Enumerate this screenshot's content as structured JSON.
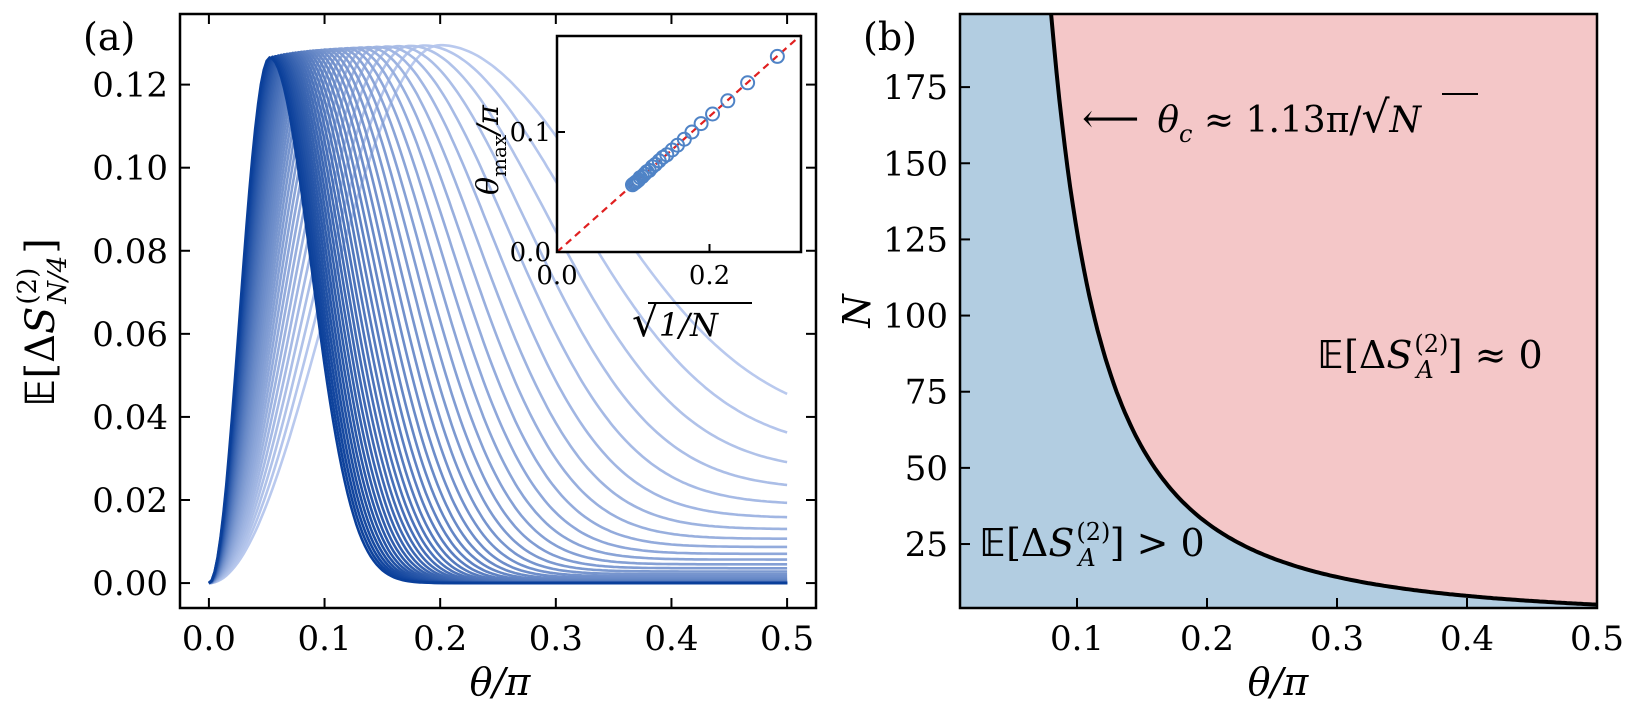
{
  "panels": {
    "a": {
      "label": "(a)",
      "xlabel": "θ/π",
      "ylabel": {
        "E": "𝔼",
        "lb": "[",
        "Delta": "Δ",
        "S": "S",
        "sup": "(2)",
        "sub": "N/4",
        "rb": "]"
      },
      "x_ticks": [
        "0.0",
        "0.1",
        "0.2",
        "0.3",
        "0.4",
        "0.5"
      ],
      "y_ticks": [
        "0.00",
        "0.02",
        "0.04",
        "0.06",
        "0.08",
        "0.10",
        "0.12"
      ],
      "inset": {
        "ylabel": {
          "theta": "θ",
          "sub": "max",
          "rest": "/π"
        },
        "xlabel": {
          "sqrt": "√",
          "body": "1/N"
        },
        "x_ticks": [
          "0.0",
          "0.2"
        ],
        "y_ticks": [
          "0.0",
          "0.1"
        ]
      }
    },
    "b": {
      "label": "(b)",
      "xlabel": "θ/π",
      "ylabel": "N",
      "x_ticks": [
        "0.1",
        "0.2",
        "0.3",
        "0.4",
        "0.5"
      ],
      "y_ticks": [
        "25",
        "50",
        "75",
        "100",
        "125",
        "150",
        "175"
      ],
      "arrow_annotation": {
        "arrow": "⟵",
        "theta": "θ",
        "sub": "c",
        "rest": " ≈ 1.13π/",
        "sqrt": "√",
        "N": "N"
      },
      "region_upper": {
        "E": "𝔼",
        "lb": "[",
        "Delta": "Δ",
        "S": "S",
        "sup": "(2)",
        "sub": "A",
        "rb": "]",
        "rel": " ≈ 0"
      },
      "region_lower": {
        "E": "𝔼",
        "lb": "[",
        "Delta": "Δ",
        "S": "S",
        "sup": "(2)",
        "sub": "A",
        "rb": "]",
        "rel": " > 0"
      }
    }
  },
  "colors": {
    "curve_light": "#b9c9ee",
    "curve_dark": "#0a3f9a",
    "inset_marker": "#4f83c6",
    "inset_fit": "#e02020",
    "region_low": "#b2cde1",
    "region_high": "#f4c7c8",
    "boundary": "#000000"
  },
  "chart_data": [
    {
      "type": "line",
      "panel": "a",
      "description_note": "",
      "x": [
        0.0,
        0.025,
        0.05,
        0.075,
        0.1,
        0.125,
        0.15,
        0.175,
        0.2,
        0.225,
        0.25,
        0.275,
        0.3,
        0.325,
        0.35,
        0.375,
        0.4,
        0.425,
        0.45,
        0.475,
        0.5
      ],
      "series": [
        {
          "values": [
            0.0,
            0.006,
            0.023,
            0.046,
            0.071,
            0.094,
            0.112,
            0.124,
            0.1295,
            0.127,
            0.119,
            0.107,
            0.093,
            0.079,
            0.067,
            0.057,
            0.049,
            0.043,
            0.04,
            0.038,
            0.0375
          ]
        },
        {
          "values": [
            0.0,
            0.009,
            0.034,
            0.066,
            0.097,
            0.118,
            0.1275,
            0.124,
            0.111,
            0.093,
            0.073,
            0.054,
            0.039,
            0.027,
            0.019,
            0.0145,
            0.012,
            0.011,
            0.0105,
            0.0105,
            0.0105
          ]
        },
        {
          "values": [
            0.0,
            0.012,
            0.045,
            0.085,
            0.115,
            0.1275,
            0.121,
            0.101,
            0.076,
            0.052,
            0.033,
            0.02,
            0.012,
            0.0075,
            0.005,
            0.0038,
            0.0032,
            0.003,
            0.003,
            0.003,
            0.003
          ]
        },
        {
          "values": [
            0.0,
            0.018,
            0.064,
            0.108,
            0.127,
            0.117,
            0.089,
            0.057,
            0.032,
            0.016,
            0.0075,
            0.0035,
            0.0018,
            0.0012,
            0.001,
            0.001,
            0.001,
            0.001,
            0.001,
            0.001,
            0.001
          ]
        },
        {
          "values": [
            0.0,
            0.029,
            0.097,
            0.127,
            0.106,
            0.066,
            0.032,
            0.013,
            0.0045,
            0.0015,
            0.0005,
            0.0002,
            0.0001,
            0.0,
            0.0,
            0.0,
            0.0,
            0.0,
            0.0,
            0.0,
            0.0
          ]
        },
        {
          "values": [
            0.0,
            0.045,
            0.1265,
            0.1,
            0.046,
            0.015,
            0.004,
            0.001,
            0.0002,
            0.0,
            0.0,
            0.0,
            0.0,
            0.0,
            0.0,
            0.0,
            0.0,
            0.0,
            0.0,
            0.0,
            0.0
          ]
        }
      ],
      "xlabel": "θ/π",
      "ylabel": "𝔼[ΔS(2)N/4]",
      "xlim": [
        -0.025,
        0.525
      ],
      "ylim": [
        -0.006,
        0.137
      ]
    },
    {
      "type": "scatter",
      "panel": "a-inset",
      "x": [
        0.289,
        0.25,
        0.224,
        0.204,
        0.189,
        0.177,
        0.167,
        0.158,
        0.151,
        0.144,
        0.139,
        0.134,
        0.129,
        0.125,
        0.121,
        0.118,
        0.115,
        0.112,
        0.109,
        0.107,
        0.105,
        0.103,
        0.101,
        0.099
      ],
      "y": [
        0.163,
        0.141,
        0.126,
        0.115,
        0.107,
        0.1,
        0.094,
        0.089,
        0.085,
        0.081,
        0.079,
        0.076,
        0.073,
        0.071,
        0.068,
        0.067,
        0.065,
        0.063,
        0.062,
        0.06,
        0.059,
        0.058,
        0.057,
        0.056
      ],
      "fit_line": {
        "slope": 0.565,
        "intercept": 0.0
      },
      "xlabel": "√1/N",
      "ylabel": "θmax/π",
      "xlim": [
        0.0,
        0.32
      ],
      "ylim": [
        0.0,
        0.18
      ]
    },
    {
      "type": "area",
      "panel": "b",
      "boundary_formula": "θc ≈ 1.13π/√N",
      "boundary_coefficient": 1.13,
      "x": [
        0.083,
        0.09,
        0.1,
        0.12,
        0.15,
        0.2,
        0.25,
        0.3,
        0.35,
        0.4,
        0.45,
        0.5
      ],
      "boundary_N": [
        185,
        158,
        128,
        89,
        57,
        32,
        20.4,
        14.2,
        10.4,
        8.0,
        6.3,
        5.1
      ],
      "regions": [
        "𝔼[ΔS(2)A] > 0",
        "𝔼[ΔS(2)A] ≈ 0"
      ],
      "xlabel": "θ/π",
      "ylabel": "N",
      "xlim": [
        0.01,
        0.5
      ],
      "ylim": [
        4,
        199
      ]
    }
  ]
}
